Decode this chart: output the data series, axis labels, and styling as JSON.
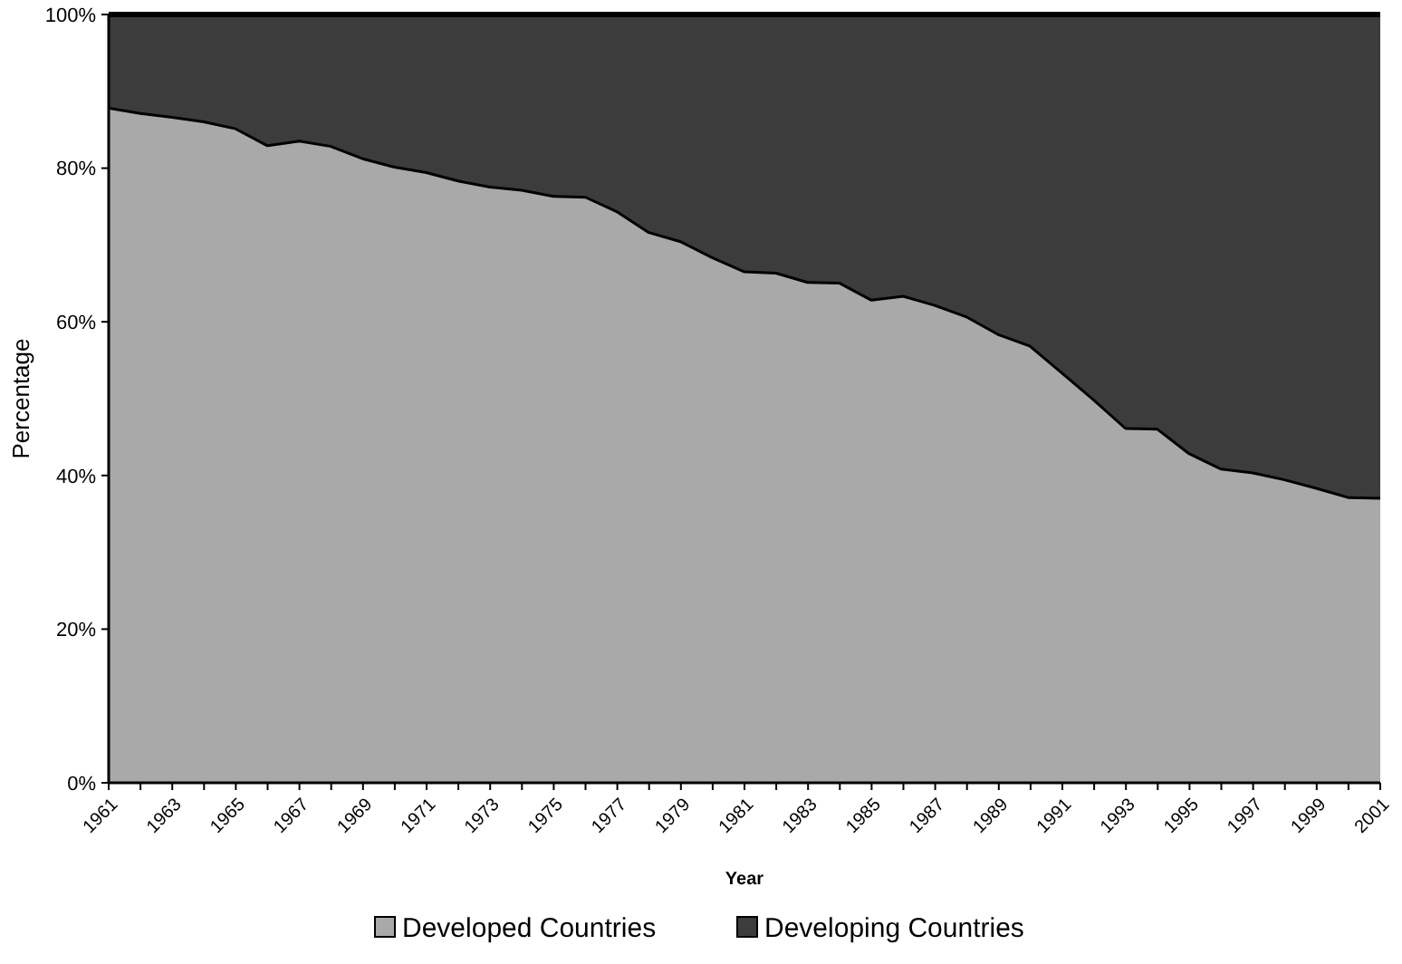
{
  "chart_data": {
    "type": "area",
    "stacked": true,
    "xlabel": "Year",
    "ylabel": "Percentage",
    "categories": [
      "1961",
      null,
      "1963",
      null,
      "1965",
      null,
      "1967",
      null,
      "1969",
      null,
      "1971",
      null,
      "1973",
      null,
      "1975",
      null,
      "1977",
      null,
      "1979",
      null,
      "1981",
      null,
      "1983",
      null,
      "1985",
      null,
      "1987",
      null,
      "1989",
      null,
      "1991",
      null,
      "1993",
      null,
      "1995",
      null,
      "1997",
      null,
      "1999",
      null,
      "2001"
    ],
    "series": [
      {
        "name": "Developed Countries",
        "color": "#a9a9a9",
        "values": [
          88,
          87.3,
          86.8,
          86.2,
          85.3,
          83.1,
          83.7,
          83,
          81.4,
          80.3,
          79.6,
          78.5,
          77.7,
          77.3,
          76.5,
          76.4,
          74.5,
          71.8,
          70.6,
          68.5,
          66.7,
          66.5,
          65.3,
          65.2,
          63,
          63.5,
          62.3,
          60.8,
          58.5,
          57,
          53.5,
          50,
          46.3,
          46.2,
          43,
          41,
          40.5,
          39.6,
          38.5,
          37.3,
          37.2
        ]
      },
      {
        "name": "Developing Countries",
        "color": "#3c3c3c",
        "values": [
          12,
          12.7,
          13.2,
          13.8,
          14.7,
          16.9,
          16.3,
          17,
          18.6,
          19.7,
          20.4,
          21.5,
          22.3,
          22.7,
          23.5,
          23.6,
          25.5,
          28.2,
          29.4,
          31.5,
          33.3,
          33.5,
          34.7,
          34.8,
          37,
          36.5,
          37.7,
          39.2,
          41.5,
          43,
          46.5,
          50,
          53.7,
          53.8,
          57,
          59,
          59.5,
          60.4,
          61.5,
          62.7,
          62.8
        ]
      }
    ],
    "ylim": [
      0,
      100
    ],
    "yticks": [
      {
        "value": 0,
        "label": "0%"
      },
      {
        "value": 20,
        "label": "20%"
      },
      {
        "value": 40,
        "label": "40%"
      },
      {
        "value": 60,
        "label": "60%"
      },
      {
        "value": 80,
        "label": "80%"
      },
      {
        "value": 100,
        "label": "100%"
      }
    ],
    "legend": "bottom"
  }
}
